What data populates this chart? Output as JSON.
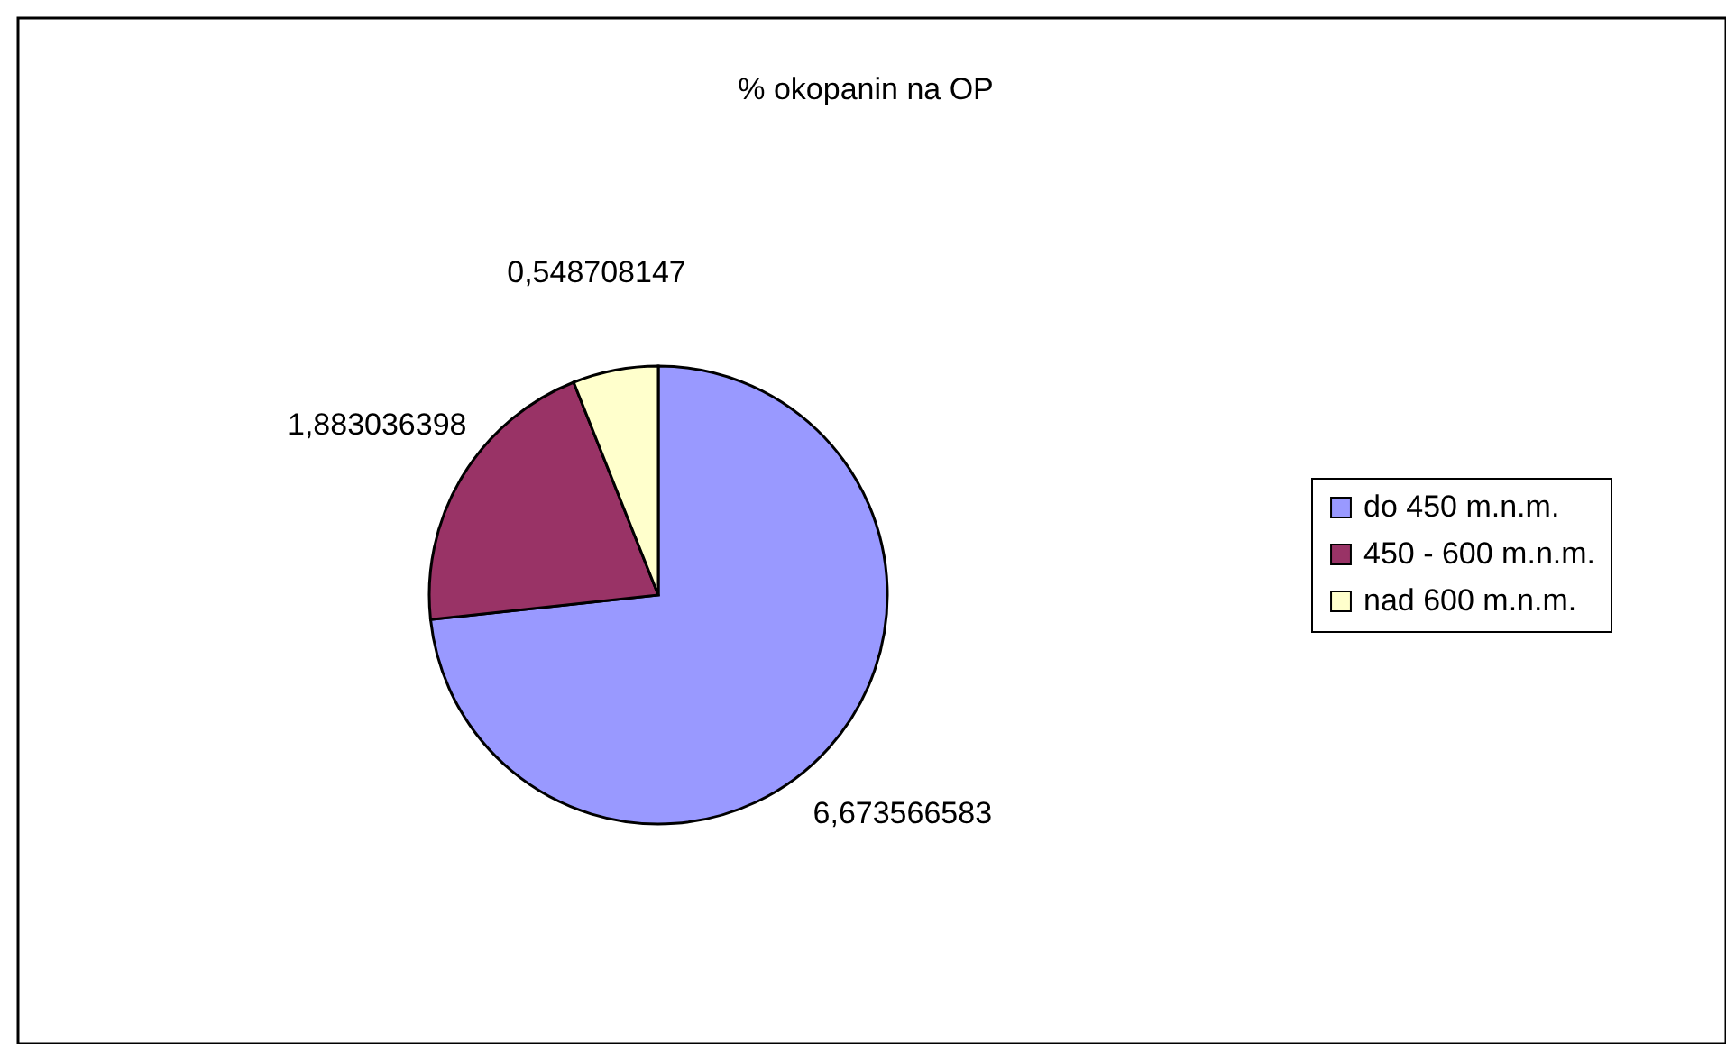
{
  "chart_data": {
    "type": "pie",
    "title": "% okopanin na OP",
    "categories": [
      "do 450 m.n.m.",
      "450 - 600 m.n.m.",
      "nad 600 m.n.m."
    ],
    "values": [
      6.673566583,
      1.883036398,
      0.548708147
    ],
    "value_labels": [
      "6,673566583",
      "1,883036398",
      "0,548708147"
    ],
    "colors": [
      "#9999ff",
      "#993366",
      "#ffffcc"
    ],
    "legend": "right"
  }
}
